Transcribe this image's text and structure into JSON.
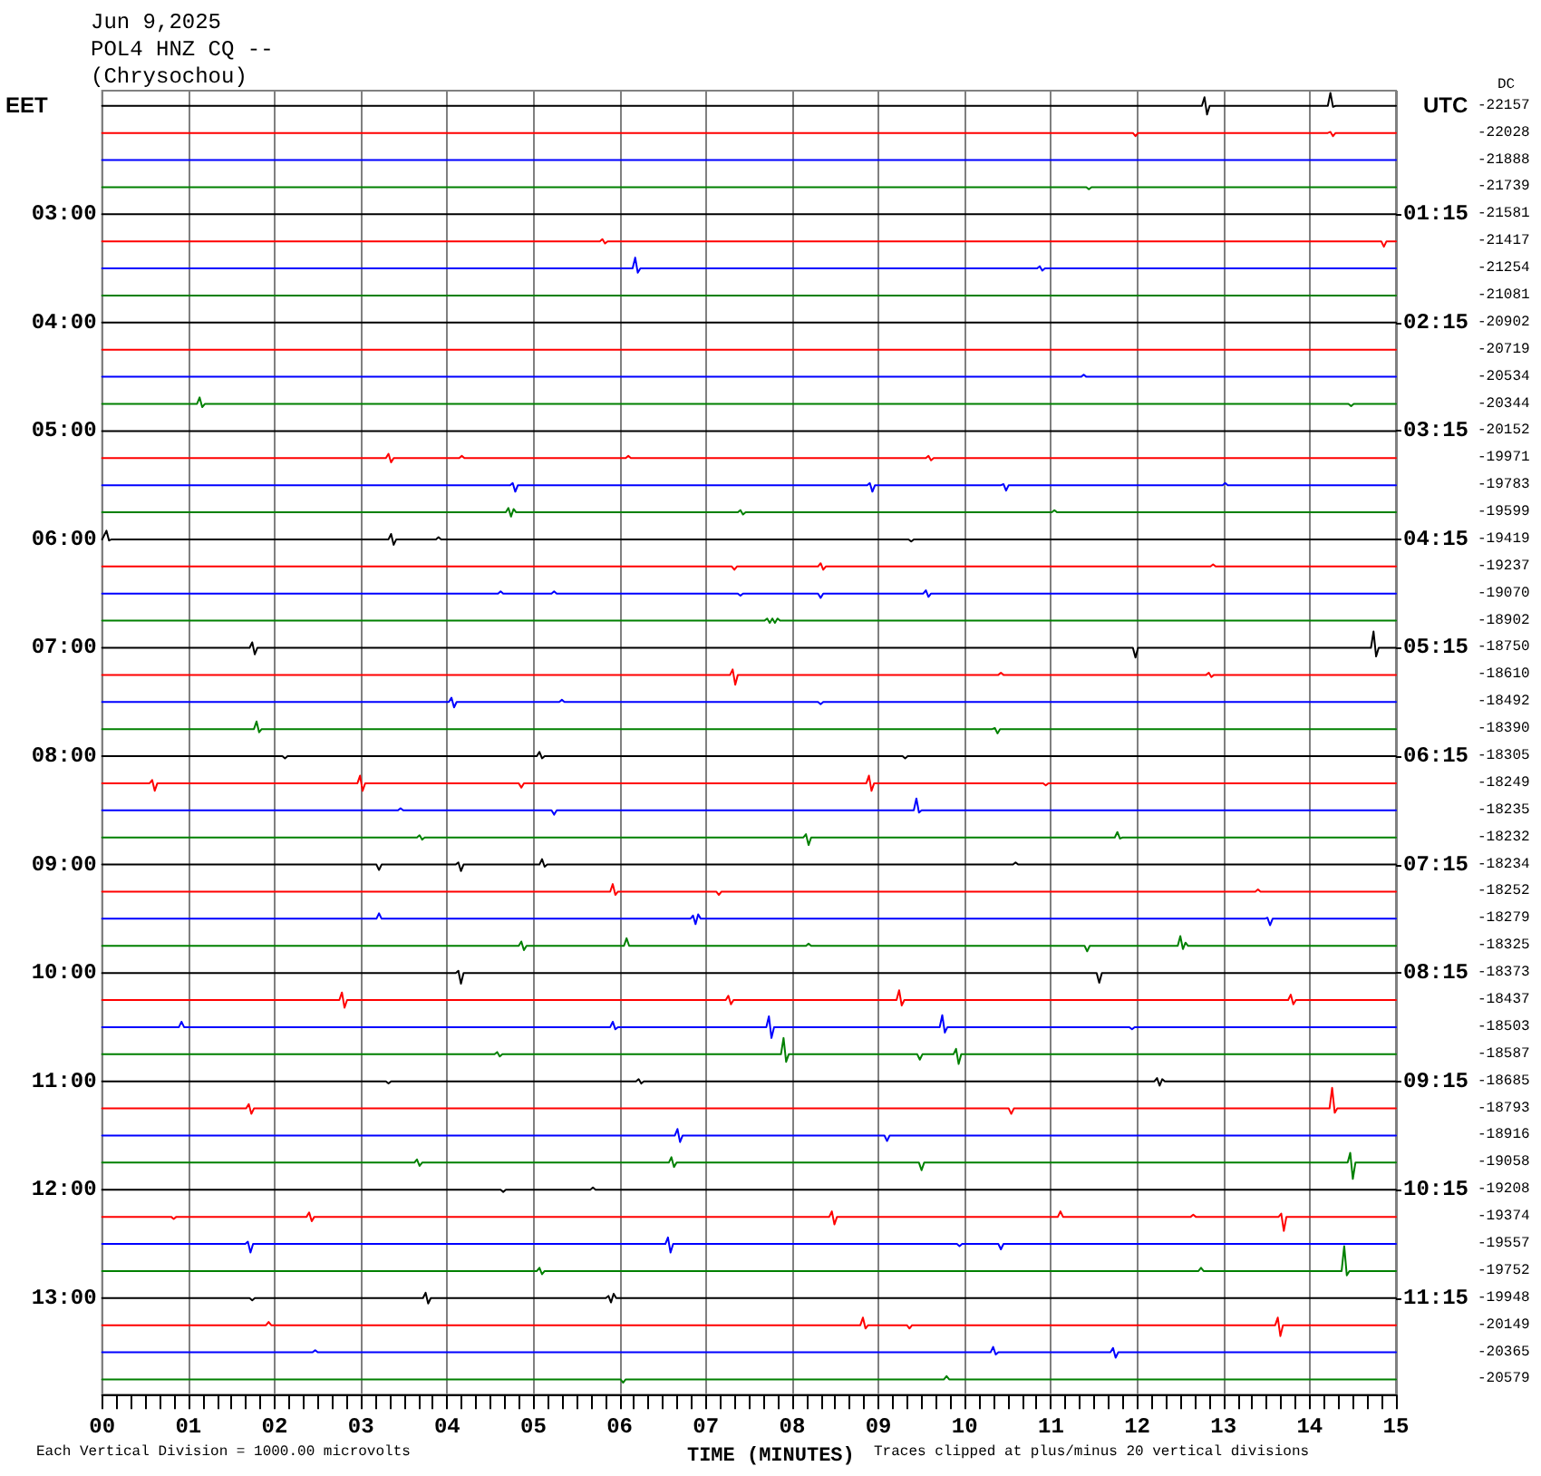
{
  "chart_data": {
    "type": "line",
    "title": "Jun 9,2025",
    "subtitle": "POL4 HNZ CQ --\n(Chrysochou)",
    "xlabel": "TIME (MINUTES)",
    "ylabel": "EET",
    "y2label": "UTC",
    "annotations": [
      "Each Vertical Division = 1000.00 microvolts",
      "Traces clipped at plus/minus 20 vertical divisions",
      "DC",
      "-22157",
      "-22028",
      "-21888",
      "-21739",
      "-21581",
      "-21417",
      "-21254",
      "-21081",
      "-20902",
      "-20719",
      "-20534",
      "-20344",
      "-20152",
      "-19971",
      "-19783",
      "-19599",
      "-19419",
      "-19237",
      "-19070",
      "-18902",
      "-18750",
      "-18610",
      "-18492",
      "-18390",
      "-18305",
      "-18249",
      "-18235",
      "-18232",
      "-18234",
      "-18252",
      "-18279",
      "-18325",
      "-18373",
      "-18437",
      "-18503",
      "-18587",
      "-18685",
      "-18793",
      "-18916",
      "-19058",
      "-19208",
      "-19374",
      "-19557",
      "-19752",
      "-19948",
      "-20149",
      "-20365",
      "-20579"
    ],
    "xlim": [
      0,
      15
    ],
    "xticks": [
      {
        "value": 0,
        "label": "00"
      },
      {
        "value": 0.167,
        "label": null
      },
      {
        "value": 0.333,
        "label": null
      },
      {
        "value": 0.5,
        "label": null
      },
      {
        "value": 0.667,
        "label": null
      },
      {
        "value": 0.833,
        "label": null
      },
      {
        "value": 1,
        "label": "01"
      },
      {
        "value": 1.167,
        "label": null
      },
      {
        "value": 1.333,
        "label": null
      },
      {
        "value": 1.5,
        "label": null
      },
      {
        "value": 1.667,
        "label": null
      },
      {
        "value": 1.833,
        "label": null
      },
      {
        "value": 2,
        "label": "02"
      },
      {
        "value": 2.167,
        "label": null
      },
      {
        "value": 2.333,
        "label": null
      },
      {
        "value": 2.5,
        "label": null
      },
      {
        "value": 2.667,
        "label": null
      },
      {
        "value": 2.833,
        "label": null
      },
      {
        "value": 3,
        "label": "03"
      },
      {
        "value": 3.167,
        "label": null
      },
      {
        "value": 3.333,
        "label": null
      },
      {
        "value": 3.5,
        "label": null
      },
      {
        "value": 3.667,
        "label": null
      },
      {
        "value": 3.833,
        "label": null
      },
      {
        "value": 4,
        "label": "04"
      },
      {
        "value": 4.167,
        "label": null
      },
      {
        "value": 4.333,
        "label": null
      },
      {
        "value": 4.5,
        "label": null
      },
      {
        "value": 4.667,
        "label": null
      },
      {
        "value": 4.833,
        "label": null
      },
      {
        "value": 5,
        "label": "05"
      },
      {
        "value": 5.167,
        "label": null
      },
      {
        "value": 5.333,
        "label": null
      },
      {
        "value": 5.5,
        "label": null
      },
      {
        "value": 5.667,
        "label": null
      },
      {
        "value": 5.833,
        "label": null
      },
      {
        "value": 6,
        "label": "06"
      },
      {
        "value": 6.167,
        "label": null
      },
      {
        "value": 6.333,
        "label": null
      },
      {
        "value": 6.5,
        "label": null
      },
      {
        "value": 6.667,
        "label": null
      },
      {
        "value": 6.833,
        "label": null
      },
      {
        "value": 7,
        "label": "07"
      },
      {
        "value": 7.167,
        "label": null
      },
      {
        "value": 7.333,
        "label": null
      },
      {
        "value": 7.5,
        "label": null
      },
      {
        "value": 7.667,
        "label": null
      },
      {
        "value": 7.833,
        "label": null
      },
      {
        "value": 8,
        "label": "08"
      },
      {
        "value": 8.167,
        "label": null
      },
      {
        "value": 8.333,
        "label": null
      },
      {
        "value": 8.5,
        "label": null
      },
      {
        "value": 8.667,
        "label": null
      },
      {
        "value": 8.833,
        "label": null
      },
      {
        "value": 9,
        "label": "09"
      },
      {
        "value": 9.167,
        "label": null
      },
      {
        "value": 9.333,
        "label": null
      },
      {
        "value": 9.5,
        "label": null
      },
      {
        "value": 9.667,
        "label": null
      },
      {
        "value": 9.833,
        "label": null
      },
      {
        "value": 10,
        "label": "10"
      },
      {
        "value": 10.167,
        "label": null
      },
      {
        "value": 10.333,
        "label": null
      },
      {
        "value": 10.5,
        "label": null
      },
      {
        "value": 10.667,
        "label": null
      },
      {
        "value": 10.833,
        "label": null
      },
      {
        "value": 11,
        "label": "11"
      },
      {
        "value": 11.167,
        "label": null
      },
      {
        "value": 11.333,
        "label": null
      },
      {
        "value": 11.5,
        "label": null
      },
      {
        "value": 11.667,
        "label": null
      },
      {
        "value": 11.833,
        "label": null
      },
      {
        "value": 12,
        "label": "12"
      },
      {
        "value": 12.167,
        "label": null
      },
      {
        "value": 12.333,
        "label": null
      },
      {
        "value": 12.5,
        "label": null
      },
      {
        "value": 12.667,
        "label": null
      },
      {
        "value": 12.833,
        "label": null
      },
      {
        "value": 13,
        "label": "13"
      },
      {
        "value": 13.167,
        "label": null
      },
      {
        "value": 13.333,
        "label": null
      },
      {
        "value": 13.5,
        "label": null
      },
      {
        "value": 13.667,
        "label": null
      },
      {
        "value": 13.833,
        "label": null
      },
      {
        "value": 14,
        "label": "14"
      },
      {
        "value": 14.167,
        "label": null
      },
      {
        "value": 14.333,
        "label": null
      },
      {
        "value": 14.5,
        "label": null
      },
      {
        "value": 14.667,
        "label": null
      },
      {
        "value": 14.833,
        "label": null
      },
      {
        "value": 15,
        "label": "15"
      }
    ],
    "ylim": [
      13.89,
      1.86
    ],
    "yticks": [
      {
        "value": 3,
        "label": "03:00"
      },
      {
        "value": 4,
        "label": "04:00"
      },
      {
        "value": 5,
        "label": "05:00"
      },
      {
        "value": 6,
        "label": "06:00"
      },
      {
        "value": 7,
        "label": "07:00"
      },
      {
        "value": 8,
        "label": "08:00"
      },
      {
        "value": 9,
        "label": "09:00"
      },
      {
        "value": 10,
        "label": "10:00"
      },
      {
        "value": 11,
        "label": "11:00"
      },
      {
        "value": 12,
        "label": "12:00"
      },
      {
        "value": 13,
        "label": "13:00"
      }
    ],
    "y2lim": [
      12.14,
      0.11
    ],
    "y2ticks": [
      {
        "value": 1.25,
        "label": "01:15"
      },
      {
        "value": 2.25,
        "label": "02:15"
      },
      {
        "value": 3.25,
        "label": "03:15"
      },
      {
        "value": 4.25,
        "label": "04:15"
      },
      {
        "value": 5.25,
        "label": "05:15"
      },
      {
        "value": 6.25,
        "label": "06:15"
      },
      {
        "value": 7.25,
        "label": "07:15"
      },
      {
        "value": 8.25,
        "label": "08:15"
      },
      {
        "value": 9.25,
        "label": "09:15"
      },
      {
        "value": 10.25,
        "label": "10:15"
      },
      {
        "value": 11.25,
        "label": "11:15"
      }
    ],
    "grid": "x",
    "marker": "none",
    "line_style": "solid",
    "series": [
      {
        "color": "#000000",
        "x": [
          0,
          12.75,
          12.78,
          12.81,
          12.84,
          14.21,
          14.24,
          14.27,
          14.3,
          15
        ],
        "values": [
          2,
          2,
          1.92,
          2.08,
          2,
          2,
          1.88,
          2.01,
          2,
          2
        ]
      },
      {
        "color": "#ff0000",
        "x": [
          0,
          11.95,
          11.98,
          12.01,
          14.21,
          14.24,
          14.27,
          14.3,
          15
        ],
        "values": [
          2.25,
          2.25,
          2.28,
          2.25,
          2.25,
          2.24,
          2.28,
          2.25,
          2.25
        ]
      },
      {
        "color": "#0000ff",
        "x": [
          0,
          15
        ],
        "values": [
          2.5,
          2.5
        ]
      },
      {
        "color": "#008000",
        "x": [
          0,
          11.41,
          11.44,
          11.47,
          15
        ],
        "values": [
          2.75,
          2.75,
          2.77,
          2.75,
          2.75
        ]
      },
      {
        "color": "#000000",
        "x": [
          0,
          15
        ],
        "values": [
          3,
          3
        ]
      },
      {
        "color": "#ff0000",
        "x": [
          0,
          5.77,
          5.8,
          5.83,
          5.86,
          14.83,
          14.86,
          14.89,
          15
        ],
        "values": [
          3.25,
          3.25,
          3.23,
          3.27,
          3.25,
          3.25,
          3.3,
          3.25,
          3.25
        ]
      },
      {
        "color": "#0000ff",
        "x": [
          0,
          6.15,
          6.18,
          6.21,
          6.24,
          10.84,
          10.87,
          10.9,
          10.93,
          15
        ],
        "values": [
          3.5,
          3.5,
          3.4,
          3.54,
          3.5,
          3.5,
          3.48,
          3.52,
          3.5,
          3.5
        ]
      },
      {
        "color": "#008000",
        "x": [
          0,
          15
        ],
        "values": [
          3.75,
          3.75
        ]
      },
      {
        "color": "#000000",
        "x": [
          0,
          15
        ],
        "values": [
          4,
          4
        ]
      },
      {
        "color": "#ff0000",
        "x": [
          0,
          15
        ],
        "values": [
          4.25,
          4.25
        ]
      },
      {
        "color": "#0000ff",
        "x": [
          0,
          11.35,
          11.38,
          11.41,
          15
        ],
        "values": [
          4.5,
          4.5,
          4.48,
          4.5,
          4.5
        ]
      },
      {
        "color": "#008000",
        "x": [
          0,
          1.1,
          1.13,
          1.16,
          1.19,
          14.45,
          14.48,
          14.51,
          15
        ],
        "values": [
          4.75,
          4.75,
          4.69,
          4.78,
          4.75,
          4.75,
          4.77,
          4.75,
          4.75
        ]
      },
      {
        "color": "#000000",
        "x": [
          0,
          15
        ],
        "values": [
          5,
          5
        ]
      },
      {
        "color": "#ff0000",
        "x": [
          0,
          3.29,
          3.32,
          3.35,
          3.38,
          4.14,
          4.17,
          4.2,
          6.07,
          6.1,
          6.13,
          9.55,
          9.58,
          9.61,
          9.64,
          15
        ],
        "values": [
          5.25,
          5.25,
          5.21,
          5.29,
          5.25,
          5.25,
          5.23,
          5.25,
          5.25,
          5.23,
          5.25,
          5.25,
          5.23,
          5.27,
          5.25,
          5.25
        ]
      },
      {
        "color": "#0000ff",
        "x": [
          0,
          4.73,
          4.76,
          4.79,
          4.82,
          8.87,
          8.9,
          8.93,
          8.96,
          10.42,
          10.45,
          10.48,
          10.51,
          12.99,
          13.02,
          13.05,
          15
        ],
        "values": [
          5.5,
          5.5,
          5.48,
          5.56,
          5.5,
          5.5,
          5.48,
          5.56,
          5.5,
          5.5,
          5.49,
          5.55,
          5.5,
          5.5,
          5.48,
          5.5,
          5.5
        ]
      },
      {
        "color": "#008000",
        "x": [
          0,
          4.68,
          4.71,
          4.74,
          4.77,
          4.8,
          7.37,
          7.4,
          7.43,
          7.46,
          11.01,
          11.04,
          11.07,
          15
        ],
        "values": [
          5.75,
          5.75,
          5.71,
          5.79,
          5.72,
          5.75,
          5.75,
          5.73,
          5.77,
          5.75,
          5.75,
          5.73,
          5.75,
          5.75
        ]
      },
      {
        "color": "#000000",
        "x": [
          0,
          0.05,
          0.08,
          0.11,
          3.32,
          3.35,
          3.38,
          3.41,
          3.87,
          3.9,
          3.93,
          9.35,
          9.38,
          9.41,
          15
        ],
        "values": [
          6,
          5.92,
          6.01,
          6,
          6,
          5.95,
          6.05,
          6,
          6,
          5.98,
          6,
          6,
          6.02,
          6,
          6
        ]
      },
      {
        "color": "#ff0000",
        "x": [
          0,
          7.3,
          7.33,
          7.36,
          8.3,
          8.33,
          8.36,
          8.39,
          12.85,
          12.88,
          12.91,
          15
        ],
        "values": [
          6.25,
          6.25,
          6.28,
          6.25,
          6.25,
          6.22,
          6.28,
          6.25,
          6.25,
          6.23,
          6.25,
          6.25
        ]
      },
      {
        "color": "#0000ff",
        "x": [
          0,
          4.59,
          4.62,
          4.65,
          5.21,
          5.24,
          5.27,
          7.37,
          7.4,
          7.43,
          8.3,
          8.33,
          8.36,
          9.52,
          9.55,
          9.58,
          9.61,
          15
        ],
        "values": [
          6.5,
          6.5,
          6.48,
          6.5,
          6.5,
          6.48,
          6.5,
          6.5,
          6.52,
          6.5,
          6.5,
          6.54,
          6.5,
          6.5,
          6.47,
          6.53,
          6.5,
          6.5
        ]
      },
      {
        "color": "#008000",
        "x": [
          0,
          7.68,
          7.71,
          7.74,
          7.77,
          7.8,
          7.83,
          7.86,
          15
        ],
        "values": [
          6.75,
          6.75,
          6.73,
          6.77,
          6.73,
          6.77,
          6.73,
          6.75,
          6.75
        ]
      },
      {
        "color": "#000000",
        "x": [
          0,
          1.71,
          1.74,
          1.77,
          1.8,
          11.95,
          11.98,
          12.01,
          14.71,
          14.74,
          14.77,
          14.8,
          15
        ],
        "values": [
          7,
          7,
          6.95,
          7.06,
          7,
          7,
          7.09,
          7,
          7,
          6.85,
          7.08,
          7,
          7
        ]
      },
      {
        "color": "#ff0000",
        "x": [
          0,
          7.28,
          7.31,
          7.34,
          7.37,
          10.39,
          10.42,
          10.45,
          12.8,
          12.83,
          12.86,
          12.89,
          15
        ],
        "values": [
          7.25,
          7.25,
          7.2,
          7.34,
          7.25,
          7.25,
          7.23,
          7.25,
          7.25,
          7.23,
          7.27,
          7.25,
          7.25
        ]
      },
      {
        "color": "#0000ff",
        "x": [
          0,
          4.02,
          4.05,
          4.08,
          4.11,
          5.3,
          5.33,
          5.36,
          8.3,
          8.33,
          8.36,
          15
        ],
        "values": [
          7.5,
          7.5,
          7.46,
          7.55,
          7.5,
          7.5,
          7.48,
          7.5,
          7.5,
          7.52,
          7.5,
          7.5
        ]
      },
      {
        "color": "#008000",
        "x": [
          0,
          1.76,
          1.79,
          1.82,
          1.85,
          10.32,
          10.35,
          10.38,
          10.41,
          15
        ],
        "values": [
          7.75,
          7.75,
          7.68,
          7.78,
          7.75,
          7.75,
          7.74,
          7.79,
          7.75,
          7.75
        ]
      },
      {
        "color": "#000000",
        "x": [
          0,
          2.09,
          2.12,
          2.15,
          5.04,
          5.07,
          5.1,
          5.13,
          9.28,
          9.31,
          9.34,
          15
        ],
        "values": [
          8,
          8,
          8.02,
          8,
          8,
          7.96,
          8.02,
          8,
          8,
          8.02,
          8,
          8
        ]
      },
      {
        "color": "#ff0000",
        "x": [
          0,
          0.55,
          0.58,
          0.61,
          0.64,
          2.96,
          2.99,
          3.02,
          3.05,
          4.83,
          4.86,
          4.89,
          8.86,
          8.89,
          8.92,
          8.95,
          10.91,
          10.94,
          10.97,
          15
        ],
        "values": [
          8.25,
          8.25,
          8.22,
          8.32,
          8.25,
          8.25,
          8.18,
          8.32,
          8.25,
          8.25,
          8.29,
          8.25,
          8.25,
          8.18,
          8.32,
          8.25,
          8.25,
          8.27,
          8.25,
          8.25
        ]
      },
      {
        "color": "#0000ff",
        "x": [
          0,
          3.43,
          3.46,
          3.49,
          5.21,
          5.24,
          5.27,
          9.41,
          9.44,
          9.47,
          9.5,
          15
        ],
        "values": [
          8.5,
          8.5,
          8.48,
          8.5,
          8.5,
          8.54,
          8.5,
          8.5,
          8.39,
          8.52,
          8.5,
          8.5
        ]
      },
      {
        "color": "#008000",
        "x": [
          0,
          3.65,
          3.68,
          3.71,
          3.74,
          8.13,
          8.16,
          8.19,
          8.22,
          11.74,
          11.77,
          11.8,
          11.83,
          15
        ],
        "values": [
          8.75,
          8.75,
          8.73,
          8.77,
          8.75,
          8.75,
          8.72,
          8.82,
          8.75,
          8.75,
          8.7,
          8.76,
          8.75,
          8.75
        ]
      },
      {
        "color": "#000000",
        "x": [
          0,
          3.18,
          3.21,
          3.24,
          4.1,
          4.13,
          4.16,
          4.19,
          5.07,
          5.1,
          5.13,
          5.16,
          10.56,
          10.59,
          10.62,
          15
        ],
        "values": [
          9,
          9,
          9.05,
          9,
          9,
          8.98,
          9.06,
          9,
          9,
          8.95,
          9.02,
          9,
          9,
          8.98,
          9,
          9
        ]
      },
      {
        "color": "#ff0000",
        "x": [
          0,
          5.89,
          5.92,
          5.95,
          5.98,
          7.12,
          7.15,
          7.18,
          13.37,
          13.4,
          13.43,
          15
        ],
        "values": [
          9.25,
          9.25,
          9.18,
          9.28,
          9.25,
          9.25,
          9.28,
          9.25,
          9.25,
          9.23,
          9.25,
          9.25
        ]
      },
      {
        "color": "#0000ff",
        "x": [
          0,
          3.18,
          3.21,
          3.24,
          6.82,
          6.85,
          6.88,
          6.91,
          6.94,
          13.48,
          13.51,
          13.54,
          13.57,
          15
        ],
        "values": [
          9.5,
          9.5,
          9.45,
          9.5,
          9.5,
          9.47,
          9.55,
          9.46,
          9.5,
          9.5,
          9.49,
          9.56,
          9.5,
          9.5
        ]
      },
      {
        "color": "#008000",
        "x": [
          0,
          4.83,
          4.86,
          4.89,
          4.92,
          6.05,
          6.08,
          6.11,
          8.16,
          8.19,
          8.22,
          11.39,
          11.42,
          11.45,
          12.47,
          12.5,
          12.53,
          12.56,
          12.59,
          15
        ],
        "values": [
          9.75,
          9.75,
          9.71,
          9.79,
          9.75,
          9.75,
          9.68,
          9.75,
          9.75,
          9.73,
          9.75,
          9.75,
          9.8,
          9.75,
          9.75,
          9.66,
          9.78,
          9.72,
          9.75,
          9.75
        ]
      },
      {
        "color": "#000000",
        "x": [
          0,
          4.1,
          4.13,
          4.16,
          4.19,
          11.53,
          11.56,
          11.59,
          15
        ],
        "values": [
          10,
          10,
          9.98,
          10.1,
          10,
          10,
          10.09,
          10,
          10
        ]
      },
      {
        "color": "#ff0000",
        "x": [
          0,
          2.75,
          2.78,
          2.81,
          2.84,
          7.23,
          7.26,
          7.29,
          7.32,
          9.21,
          9.24,
          9.27,
          9.3,
          13.75,
          13.78,
          13.81,
          13.84,
          15
        ],
        "values": [
          10.25,
          10.25,
          10.18,
          10.32,
          10.25,
          10.25,
          10.21,
          10.29,
          10.25,
          10.25,
          10.16,
          10.3,
          10.25,
          10.25,
          10.2,
          10.29,
          10.25,
          10.25
        ]
      },
      {
        "color": "#0000ff",
        "x": [
          0,
          0.89,
          0.92,
          0.95,
          5.89,
          5.92,
          5.95,
          5.98,
          7.7,
          7.73,
          7.76,
          7.79,
          9.71,
          9.74,
          9.77,
          9.8,
          11.91,
          11.94,
          11.97,
          15
        ],
        "values": [
          10.5,
          10.5,
          10.45,
          10.5,
          10.5,
          10.45,
          10.52,
          10.5,
          10.5,
          10.4,
          10.6,
          10.5,
          10.5,
          10.39,
          10.55,
          10.5,
          10.5,
          10.52,
          10.5,
          10.5
        ]
      },
      {
        "color": "#008000",
        "x": [
          0,
          4.55,
          4.58,
          4.61,
          4.64,
          7.87,
          7.9,
          7.93,
          7.96,
          9.45,
          9.48,
          9.51,
          9.87,
          9.9,
          9.93,
          9.96,
          15
        ],
        "values": [
          10.75,
          10.75,
          10.73,
          10.77,
          10.75,
          10.75,
          10.6,
          10.82,
          10.75,
          10.75,
          10.8,
          10.75,
          10.75,
          10.7,
          10.84,
          10.75,
          10.75
        ]
      },
      {
        "color": "#000000",
        "x": [
          0,
          3.29,
          3.32,
          3.35,
          6.19,
          6.22,
          6.25,
          6.28,
          12.2,
          12.23,
          12.26,
          12.29,
          12.32,
          15
        ],
        "values": [
          11,
          11,
          11.02,
          11,
          11,
          10.98,
          11.02,
          11,
          11,
          10.97,
          11.04,
          10.98,
          11,
          11
        ]
      },
      {
        "color": "#ff0000",
        "x": [
          0,
          1.67,
          1.7,
          1.73,
          1.76,
          10.51,
          10.54,
          10.57,
          14.23,
          14.26,
          14.29,
          14.32,
          15
        ],
        "values": [
          11.25,
          11.25,
          11.21,
          11.3,
          11.25,
          11.25,
          11.3,
          11.25,
          11.25,
          11.06,
          11.29,
          11.25,
          11.25
        ]
      },
      {
        "color": "#0000ff",
        "x": [
          0,
          6.64,
          6.67,
          6.7,
          6.73,
          9.07,
          9.1,
          9.13,
          15
        ],
        "values": [
          11.5,
          11.5,
          11.44,
          11.56,
          11.5,
          11.5,
          11.55,
          11.5,
          11.5
        ]
      },
      {
        "color": "#008000",
        "x": [
          0,
          3.62,
          3.65,
          3.68,
          3.71,
          6.57,
          6.6,
          6.63,
          6.66,
          9.47,
          9.5,
          9.53,
          14.44,
          14.47,
          14.5,
          14.53,
          15
        ],
        "values": [
          11.75,
          11.75,
          11.72,
          11.78,
          11.75,
          11.75,
          11.7,
          11.79,
          11.75,
          11.75,
          11.82,
          11.75,
          11.75,
          11.66,
          11.9,
          11.75,
          11.75
        ]
      },
      {
        "color": "#000000",
        "x": [
          0,
          4.62,
          4.65,
          4.68,
          5.66,
          5.69,
          5.72,
          15
        ],
        "values": [
          12,
          12,
          12.02,
          12,
          12,
          11.98,
          12,
          12
        ]
      },
      {
        "color": "#ff0000",
        "x": [
          0,
          0.8,
          0.83,
          0.86,
          2.37,
          2.4,
          2.43,
          2.46,
          8.43,
          8.46,
          8.49,
          8.52,
          11.08,
          11.11,
          11.14,
          12.62,
          12.65,
          12.68,
          13.64,
          13.67,
          13.7,
          13.73,
          15
        ],
        "values": [
          12.25,
          12.25,
          12.27,
          12.25,
          12.25,
          12.21,
          12.29,
          12.25,
          12.25,
          12.2,
          12.32,
          12.25,
          12.25,
          12.2,
          12.25,
          12.25,
          12.23,
          12.25,
          12.25,
          12.22,
          12.38,
          12.25,
          12.25
        ]
      },
      {
        "color": "#0000ff",
        "x": [
          0,
          1.66,
          1.69,
          1.72,
          1.75,
          6.53,
          6.56,
          6.59,
          6.62,
          9.91,
          9.94,
          9.97,
          10.39,
          10.42,
          10.45,
          15
        ],
        "values": [
          12.5,
          12.5,
          12.48,
          12.58,
          12.5,
          12.5,
          12.44,
          12.58,
          12.5,
          12.5,
          12.52,
          12.5,
          12.5,
          12.55,
          12.5,
          12.5
        ]
      },
      {
        "color": "#008000",
        "x": [
          0,
          5.04,
          5.07,
          5.1,
          5.13,
          12.71,
          12.74,
          12.77,
          14.37,
          14.4,
          14.43,
          14.46,
          15
        ],
        "values": [
          12.75,
          12.75,
          12.72,
          12.78,
          12.75,
          12.75,
          12.72,
          12.75,
          12.75,
          12.52,
          12.79,
          12.75,
          12.75
        ]
      },
      {
        "color": "#000000",
        "x": [
          0,
          1.71,
          1.74,
          1.77,
          3.72,
          3.75,
          3.78,
          3.81,
          5.84,
          5.87,
          5.9,
          5.93,
          5.96,
          15
        ],
        "values": [
          13,
          13,
          13.02,
          13,
          13,
          12.95,
          13.05,
          13,
          13,
          12.98,
          13.04,
          12.96,
          13,
          13
        ]
      },
      {
        "color": "#ff0000",
        "x": [
          0,
          1.9,
          1.93,
          1.96,
          8.79,
          8.82,
          8.85,
          8.88,
          9.33,
          9.36,
          9.39,
          13.6,
          13.63,
          13.66,
          13.69,
          15
        ],
        "values": [
          13.25,
          13.25,
          13.22,
          13.25,
          13.25,
          13.18,
          13.28,
          13.25,
          13.25,
          13.28,
          13.25,
          13.25,
          13.18,
          13.35,
          13.25,
          13.25
        ]
      },
      {
        "color": "#0000ff",
        "x": [
          0,
          2.44,
          2.47,
          2.5,
          10.3,
          10.33,
          10.36,
          10.39,
          11.69,
          11.72,
          11.75,
          11.78,
          15
        ],
        "values": [
          13.5,
          13.5,
          13.48,
          13.5,
          13.5,
          13.45,
          13.52,
          13.5,
          13.5,
          13.46,
          13.55,
          13.5,
          13.5
        ]
      },
      {
        "color": "#008000",
        "x": [
          0,
          6.01,
          6.04,
          6.07,
          9.76,
          9.79,
          9.82,
          15
        ],
        "values": [
          13.75,
          13.75,
          13.78,
          13.75,
          13.75,
          13.72,
          13.75,
          13.75
        ]
      }
    ]
  }
}
